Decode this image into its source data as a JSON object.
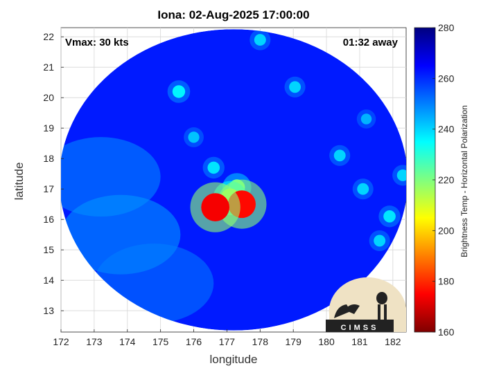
{
  "header": {
    "title": "Iona: 02-Aug-2025 17:00:00",
    "vmax_text": "Vmax: 30 kts",
    "time_away_text": "01:32 away"
  },
  "logo": {
    "text": "CIMSS"
  },
  "colors": {
    "background": "#ffffff",
    "grid": "#d6d6d6",
    "colormap": [
      "#7f0000",
      "#ff0000",
      "#ffff00",
      "#00ffff",
      "#0000ff",
      "#00007f"
    ]
  },
  "chart_data": {
    "type": "heatmap",
    "title": "Iona: 02-Aug-2025 17:00:00",
    "xlabel": "longitude",
    "ylabel": "latitude",
    "colorbar_label": "Brightness Temp - Horizontal Polarization",
    "xlim": [
      172,
      182.4
    ],
    "ylim": [
      12.3,
      22.3
    ],
    "xticks": [
      172,
      173,
      174,
      175,
      176,
      177,
      178,
      179,
      180,
      181,
      182
    ],
    "yticks": [
      13,
      14,
      15,
      16,
      17,
      18,
      19,
      20,
      21,
      22
    ],
    "colorbar_range": [
      160,
      280
    ],
    "colorbar_ticks": [
      160,
      180,
      200,
      220,
      240,
      260,
      280
    ],
    "grid": true,
    "background_tb": 262,
    "data_region": {
      "shape": "ellipse",
      "center": [
        177.2,
        17.3
      ],
      "radius_lon": 5.25,
      "radius_lat": 4.95
    },
    "cold_features": [
      {
        "lon": 176.65,
        "lat": 16.4,
        "tb": 174
      },
      {
        "lon": 177.45,
        "lat": 16.5,
        "tb": 176
      },
      {
        "lon": 177.1,
        "lat": 16.7,
        "tb": 210
      },
      {
        "lon": 177.3,
        "lat": 17.05,
        "tb": 222
      },
      {
        "lon": 175.55,
        "lat": 20.2,
        "tb": 236
      },
      {
        "lon": 176.0,
        "lat": 18.7,
        "tb": 242
      },
      {
        "lon": 176.6,
        "lat": 17.7,
        "tb": 238
      },
      {
        "lon": 178.0,
        "lat": 21.9,
        "tb": 240
      },
      {
        "lon": 179.05,
        "lat": 20.35,
        "tb": 240
      },
      {
        "lon": 180.4,
        "lat": 18.1,
        "tb": 240
      },
      {
        "lon": 181.1,
        "lat": 17.0,
        "tb": 240
      },
      {
        "lon": 181.9,
        "lat": 16.1,
        "tb": 238
      },
      {
        "lon": 181.6,
        "lat": 15.3,
        "tb": 240
      },
      {
        "lon": 182.3,
        "lat": 17.45,
        "tb": 240
      },
      {
        "lon": 181.2,
        "lat": 19.3,
        "tb": 244
      }
    ],
    "warm_bands": [
      {
        "lon": 173.8,
        "lat": 15.5,
        "tb": 246
      },
      {
        "lon": 173.2,
        "lat": 17.4,
        "tb": 248
      },
      {
        "lon": 174.8,
        "lat": 13.9,
        "tb": 250
      }
    ]
  }
}
